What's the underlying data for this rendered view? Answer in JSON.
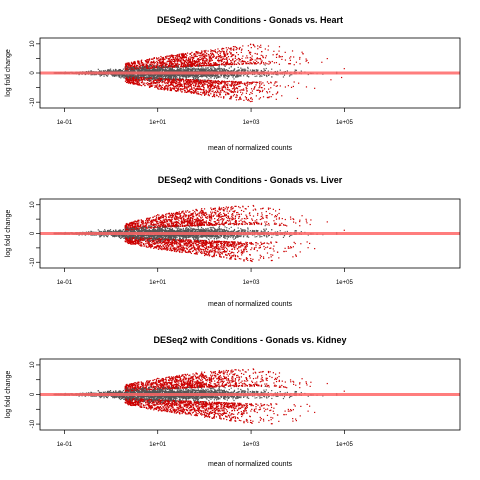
{
  "chart_data": [
    {
      "type": "scatter",
      "title": "DESeq2 with Conditions - Gonads vs. Heart",
      "xlabel": "mean of normalized counts",
      "ylabel": "log fold change",
      "x_scale": "log10",
      "xlim": [
        0.03,
        30000000
      ],
      "ylim": [
        -12,
        12
      ],
      "x_ticks": [
        0.1,
        10,
        1000,
        100000
      ],
      "x_tick_labels": [
        "1e-01",
        "1e+01",
        "1e+03",
        "1e+05"
      ],
      "y_ticks": [
        -10,
        -5,
        0,
        5,
        10
      ],
      "y_tick_labels": [
        "-10",
        "-5",
        "0",
        "5",
        "10"
      ],
      "hline": {
        "y": 0,
        "color": "#ff6666"
      },
      "series": [
        {
          "color": "#555555",
          "note": "not significant",
          "envelope": {
            "x": [
              0.06,
              0.3,
              1,
              3,
              10,
              100,
              1000,
              10000,
              100000
            ],
            "lo": [
              0,
              -0.6,
              -1.2,
              -1.8,
              -2.2,
              -2,
              -1.6,
              -1,
              -0.4
            ],
            "hi": [
              0,
              0.6,
              1.2,
              1.8,
              2.2,
              2,
              1.6,
              1,
              0.4
            ]
          }
        },
        {
          "color": "#cc0000",
          "note": "significant",
          "envelope": {
            "x": [
              2,
              10,
              100,
              1000,
              10000,
              100000
            ],
            "lo": [
              -3,
              -5,
              -7,
              -9,
              -8,
              -4
            ],
            "hi": [
              3,
              5,
              7,
              9,
              8,
              4
            ]
          }
        }
      ]
    },
    {
      "type": "scatter",
      "title": "DESeq2 with Conditions - Gonads vs. Liver",
      "xlabel": "mean of normalized counts",
      "ylabel": "log fold change",
      "x_scale": "log10",
      "xlim": [
        0.03,
        30000000
      ],
      "ylim": [
        -12,
        12
      ],
      "x_ticks": [
        0.1,
        10,
        1000,
        100000
      ],
      "x_tick_labels": [
        "1e-01",
        "1e+01",
        "1e+03",
        "1e+05"
      ],
      "y_ticks": [
        -10,
        -5,
        0,
        5,
        10
      ],
      "y_tick_labels": [
        "-10",
        "-5",
        "0",
        "5",
        "10"
      ],
      "hline": {
        "y": 0,
        "color": "#ff6666"
      },
      "series": [
        {
          "color": "#555555",
          "note": "not significant",
          "envelope": {
            "x": [
              0.06,
              0.3,
              1,
              3,
              10,
              100,
              1000,
              10000,
              100000
            ],
            "lo": [
              0,
              -0.6,
              -1.2,
              -1.8,
              -2.2,
              -2,
              -1.6,
              -1,
              -0.4
            ],
            "hi": [
              0,
              0.6,
              1.2,
              1.8,
              2.2,
              2,
              1.6,
              1,
              0.4
            ]
          }
        },
        {
          "color": "#cc0000",
          "note": "significant",
          "envelope": {
            "x": [
              2,
              10,
              100,
              1000,
              10000,
              100000
            ],
            "lo": [
              -3,
              -5,
              -7,
              -9,
              -8,
              -4
            ],
            "hi": [
              3,
              6,
              8,
              9,
              7,
              3
            ]
          }
        }
      ]
    },
    {
      "type": "scatter",
      "title": "DESeq2 with Conditions - Gonads vs. Kidney",
      "xlabel": "mean of normalized counts",
      "ylabel": "log fold change",
      "x_scale": "log10",
      "xlim": [
        0.03,
        30000000
      ],
      "ylim": [
        -12,
        12
      ],
      "x_ticks": [
        0.1,
        10,
        1000,
        100000
      ],
      "x_tick_labels": [
        "1e-01",
        "1e+01",
        "1e+03",
        "1e+05"
      ],
      "y_ticks": [
        -10,
        -5,
        0,
        5,
        10
      ],
      "y_tick_labels": [
        "-10",
        "-5",
        "0",
        "5",
        "10"
      ],
      "hline": {
        "y": 0,
        "color": "#ff6666"
      },
      "series": [
        {
          "color": "#555555",
          "note": "not significant",
          "envelope": {
            "x": [
              0.06,
              0.3,
              1,
              3,
              10,
              100,
              1000,
              10000,
              100000
            ],
            "lo": [
              0,
              -0.6,
              -1.2,
              -1.8,
              -2.2,
              -2,
              -1.6,
              -1,
              -0.4
            ],
            "hi": [
              0,
              0.6,
              1.2,
              1.8,
              2.2,
              2,
              1.6,
              1,
              0.4
            ]
          }
        },
        {
          "color": "#cc0000",
          "note": "significant",
          "envelope": {
            "x": [
              2,
              10,
              100,
              1000,
              10000,
              100000
            ],
            "lo": [
              -3,
              -5,
              -7,
              -9,
              -9,
              -5
            ],
            "hi": [
              3,
              5,
              7,
              8,
              6,
              3
            ]
          }
        }
      ]
    }
  ]
}
